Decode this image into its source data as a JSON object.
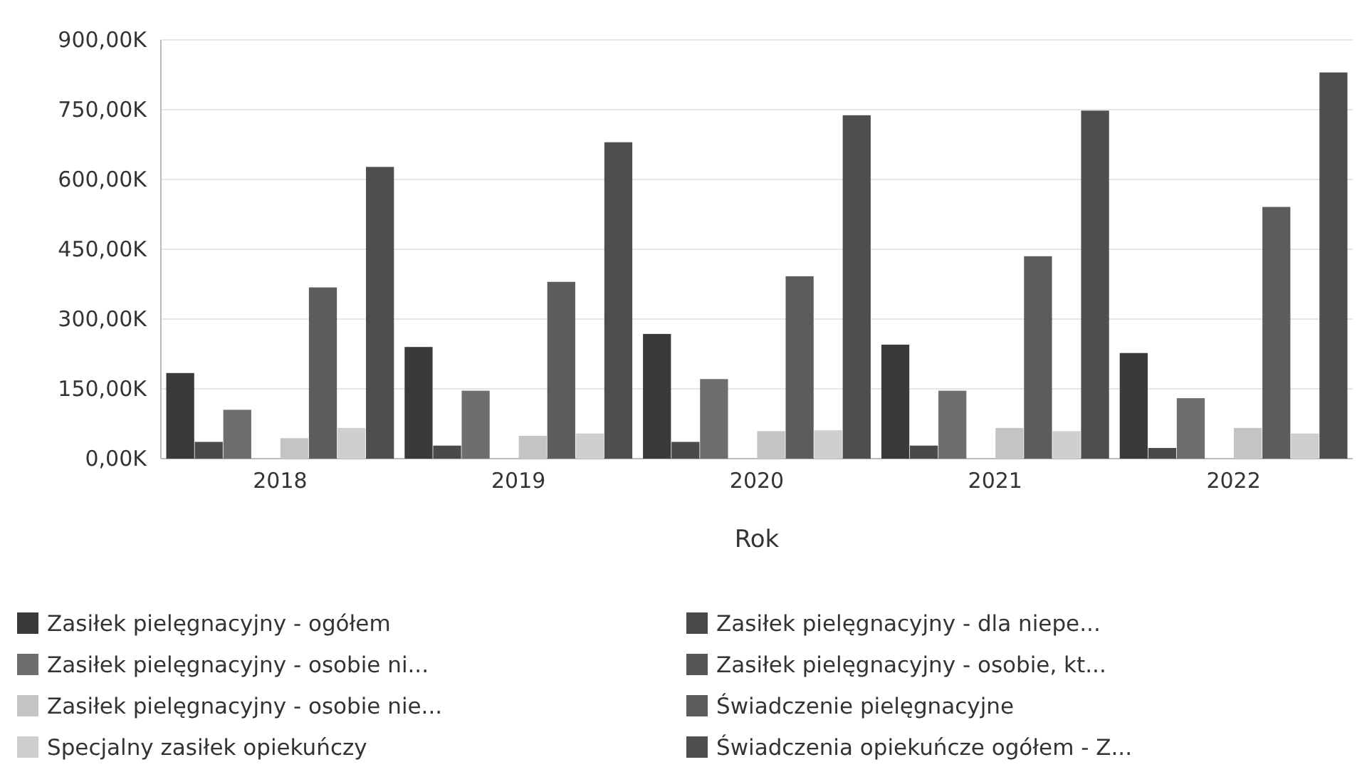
{
  "chart_data": {
    "type": "bar",
    "xlabel": "Rok",
    "categories": [
      "2018",
      "2019",
      "2020",
      "2021",
      "2022"
    ],
    "series": [
      {
        "name": "Zasiłek pielęgnacyjny - ogółem",
        "color": "#3a3a3a",
        "values": [
          184,
          240,
          268,
          245,
          227
        ]
      },
      {
        "name": "Zasiłek pielęgnacyjny - dla niepe...",
        "color": "#4a4a4a",
        "values": [
          36,
          28,
          36,
          28,
          23
        ]
      },
      {
        "name": "Zasiłek pielęgnacyjny - osobie ni...",
        "color": "#6e6e6e",
        "values": [
          105,
          146,
          171,
          146,
          130
        ]
      },
      {
        "name": "Zasiłek pielęgnacyjny - osobie, kt...",
        "color": "#555555",
        "values": [
          0,
          0,
          0,
          0,
          0
        ]
      },
      {
        "name": "Zasiłek pielęgnacyjny -  osobie nie...",
        "color": "#c4c4c4",
        "values": [
          44,
          49,
          59,
          66,
          66
        ]
      },
      {
        "name": "Świadczenie pielęgnacyjne",
        "color": "#5c5c5c",
        "values": [
          368,
          380,
          392,
          435,
          541
        ]
      },
      {
        "name": "Specjalny zasiłek opiekuńczy",
        "color": "#cfcfcf",
        "values": [
          66,
          54,
          61,
          59,
          54
        ]
      },
      {
        "name": "Świadczenia opiekuńcze ogółem - Z...",
        "color": "#4e4e4e",
        "values": [
          627,
          680,
          738,
          748,
          830
        ]
      }
    ],
    "ylim": [
      0,
      900
    ],
    "yticks": [
      {
        "value": 0,
        "label": "0,00K"
      },
      {
        "value": 150,
        "label": "150,00K"
      },
      {
        "value": 300,
        "label": "300,00K"
      },
      {
        "value": 450,
        "label": "450,00K"
      },
      {
        "value": 600,
        "label": "600,00K"
      },
      {
        "value": 750,
        "label": "750,00K"
      },
      {
        "value": 900,
        "label": "900,00K"
      }
    ],
    "grid": "y",
    "legend": "bottom"
  }
}
